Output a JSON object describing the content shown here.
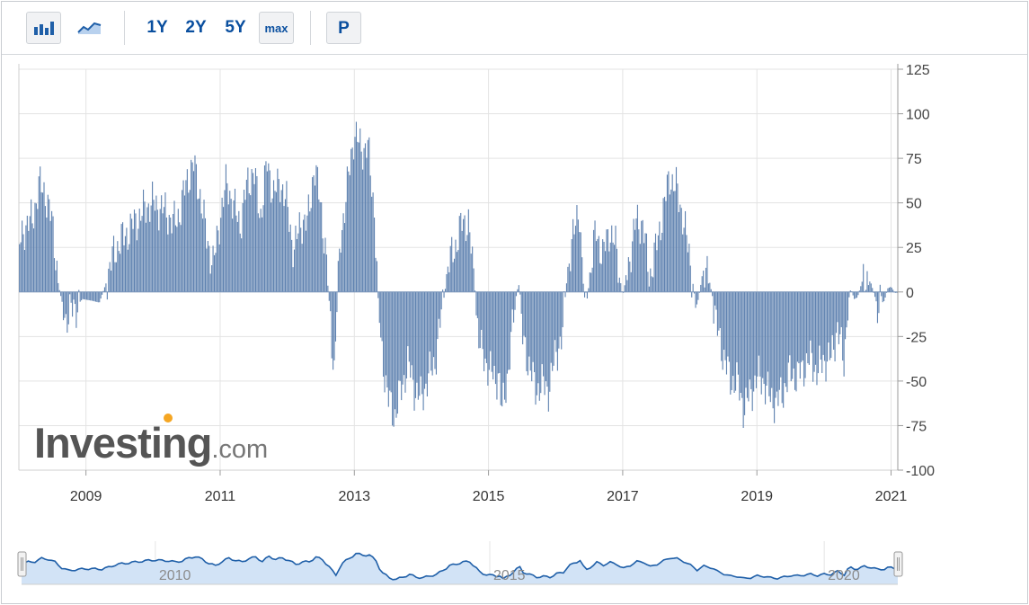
{
  "toolbar": {
    "buttons": [
      {
        "key": "bar",
        "icon": "bar-chart-icon"
      },
      {
        "key": "line",
        "icon": "line-chart-icon"
      },
      {
        "key": "1y",
        "label": "1Y"
      },
      {
        "key": "2y",
        "label": "2Y"
      },
      {
        "key": "5y",
        "label": "5Y"
      },
      {
        "key": "max",
        "label": "max"
      },
      {
        "key": "p",
        "label": "P"
      }
    ],
    "accent_color": "#0a4f9f"
  },
  "watermark": {
    "brand": "Investing",
    "suffix": ".com"
  },
  "colors": {
    "bar": "#5f82b0",
    "bar_stroke": "#4a6d9c",
    "nav_line": "#1f5fa8",
    "nav_fill": "#d2e3f6",
    "grid": "#e3e3e3"
  },
  "chart_data": {
    "type": "bar",
    "x_label": "",
    "y_label": "",
    "xlim": [
      2008.0,
      2021.1
    ],
    "ylim": [
      -100,
      125
    ],
    "y_ticks": [
      125,
      100,
      75,
      50,
      25,
      0,
      -25,
      -50,
      -75,
      -100
    ],
    "x_ticks": [
      2009,
      2011,
      2013,
      2015,
      2017,
      2019,
      2021
    ],
    "y_axis_position": "right",
    "grid": true,
    "keypoints": [
      [
        2008.0,
        25
      ],
      [
        2008.1,
        38
      ],
      [
        2008.2,
        40
      ],
      [
        2008.3,
        60
      ],
      [
        2008.4,
        55
      ],
      [
        2008.5,
        38
      ],
      [
        2008.6,
        2
      ],
      [
        2008.7,
        -15
      ],
      [
        2008.8,
        -10
      ],
      [
        2008.9,
        -6
      ],
      [
        2008.95,
        -4
      ],
      [
        2009.1,
        -5
      ],
      [
        2009.2,
        -6
      ],
      [
        2009.3,
        5
      ],
      [
        2009.4,
        20
      ],
      [
        2009.5,
        28
      ],
      [
        2009.6,
        32
      ],
      [
        2009.7,
        38
      ],
      [
        2009.8,
        42
      ],
      [
        2009.9,
        48
      ],
      [
        2010.0,
        50
      ],
      [
        2010.1,
        47
      ],
      [
        2010.2,
        45
      ],
      [
        2010.3,
        38
      ],
      [
        2010.4,
        45
      ],
      [
        2010.5,
        62
      ],
      [
        2010.6,
        72
      ],
      [
        2010.7,
        55
      ],
      [
        2010.8,
        30
      ],
      [
        2010.9,
        15
      ],
      [
        2011.0,
        42
      ],
      [
        2011.1,
        62
      ],
      [
        2011.2,
        48
      ],
      [
        2011.3,
        38
      ],
      [
        2011.4,
        60
      ],
      [
        2011.5,
        68
      ],
      [
        2011.6,
        42
      ],
      [
        2011.7,
        72
      ],
      [
        2011.8,
        55
      ],
      [
        2011.9,
        62
      ],
      [
        2012.0,
        48
      ],
      [
        2012.1,
        22
      ],
      [
        2012.2,
        40
      ],
      [
        2012.3,
        38
      ],
      [
        2012.4,
        70
      ],
      [
        2012.5,
        50
      ],
      [
        2012.6,
        10
      ],
      [
        2012.65,
        -20
      ],
      [
        2012.7,
        -45
      ],
      [
        2012.75,
        0
      ],
      [
        2012.8,
        32
      ],
      [
        2012.9,
        60
      ],
      [
        2013.0,
        90
      ],
      [
        2013.1,
        80
      ],
      [
        2013.2,
        82
      ],
      [
        2013.3,
        45
      ],
      [
        2013.35,
        0
      ],
      [
        2013.4,
        -30
      ],
      [
        2013.5,
        -60
      ],
      [
        2013.6,
        -70
      ],
      [
        2013.7,
        -55
      ],
      [
        2013.8,
        -40
      ],
      [
        2013.9,
        -55
      ],
      [
        2014.0,
        -60
      ],
      [
        2014.1,
        -48
      ],
      [
        2014.2,
        -40
      ],
      [
        2014.3,
        -12
      ],
      [
        2014.35,
        0
      ],
      [
        2014.4,
        15
      ],
      [
        2014.5,
        25
      ],
      [
        2014.6,
        38
      ],
      [
        2014.7,
        40
      ],
      [
        2014.75,
        20
      ],
      [
        2014.8,
        0
      ],
      [
        2014.85,
        -25
      ],
      [
        2014.9,
        -35
      ],
      [
        2015.0,
        -42
      ],
      [
        2015.1,
        -50
      ],
      [
        2015.15,
        -45
      ],
      [
        2015.2,
        -68
      ],
      [
        2015.3,
        -42
      ],
      [
        2015.4,
        -5
      ],
      [
        2015.45,
        5
      ],
      [
        2015.5,
        -25
      ],
      [
        2015.6,
        -40
      ],
      [
        2015.7,
        -55
      ],
      [
        2015.8,
        -52
      ],
      [
        2015.9,
        -55
      ],
      [
        2016.0,
        -35
      ],
      [
        2016.1,
        -25
      ],
      [
        2016.15,
        0
      ],
      [
        2016.2,
        18
      ],
      [
        2016.3,
        38
      ],
      [
        2016.35,
        50
      ],
      [
        2016.4,
        10
      ],
      [
        2016.45,
        -10
      ],
      [
        2016.5,
        5
      ],
      [
        2016.6,
        35
      ],
      [
        2016.7,
        20
      ],
      [
        2016.8,
        35
      ],
      [
        2016.9,
        25
      ],
      [
        2016.95,
        10
      ],
      [
        2017.0,
        -2
      ],
      [
        2017.1,
        18
      ],
      [
        2017.2,
        40
      ],
      [
        2017.3,
        38
      ],
      [
        2017.4,
        8
      ],
      [
        2017.5,
        25
      ],
      [
        2017.6,
        45
      ],
      [
        2017.7,
        65
      ],
      [
        2017.8,
        58
      ],
      [
        2017.9,
        42
      ],
      [
        2018.0,
        18
      ],
      [
        2018.1,
        -10
      ],
      [
        2018.2,
        12
      ],
      [
        2018.3,
        5
      ],
      [
        2018.35,
        -5
      ],
      [
        2018.4,
        -20
      ],
      [
        2018.5,
        -35
      ],
      [
        2018.6,
        -50
      ],
      [
        2018.7,
        -50
      ],
      [
        2018.8,
        -65
      ],
      [
        2018.9,
        -58
      ],
      [
        2019.0,
        -48
      ],
      [
        2019.1,
        -50
      ],
      [
        2019.2,
        -60
      ],
      [
        2019.3,
        -62
      ],
      [
        2019.4,
        -55
      ],
      [
        2019.5,
        -45
      ],
      [
        2019.6,
        -48
      ],
      [
        2019.7,
        -42
      ],
      [
        2019.8,
        -38
      ],
      [
        2019.9,
        -45
      ],
      [
        2020.0,
        -38
      ],
      [
        2020.1,
        -38
      ],
      [
        2020.2,
        -20
      ],
      [
        2020.3,
        -40
      ],
      [
        2020.35,
        -8
      ],
      [
        2020.4,
        2
      ],
      [
        2020.45,
        -4
      ],
      [
        2020.5,
        -3
      ],
      [
        2020.6,
        10
      ],
      [
        2020.7,
        5
      ],
      [
        2020.8,
        -8
      ],
      [
        2020.9,
        -5
      ],
      [
        2020.95,
        2
      ],
      [
        2021.0,
        3
      ],
      [
        2021.05,
        0
      ]
    ]
  },
  "navigator": {
    "labels": [
      {
        "year": 2010,
        "text": "2010"
      },
      {
        "year": 2015,
        "text": "2015"
      },
      {
        "year": 2020,
        "text": "2020"
      }
    ],
    "xlim": [
      2008.0,
      2021.1
    ],
    "grid_years": [
      2010,
      2015,
      2020
    ]
  }
}
